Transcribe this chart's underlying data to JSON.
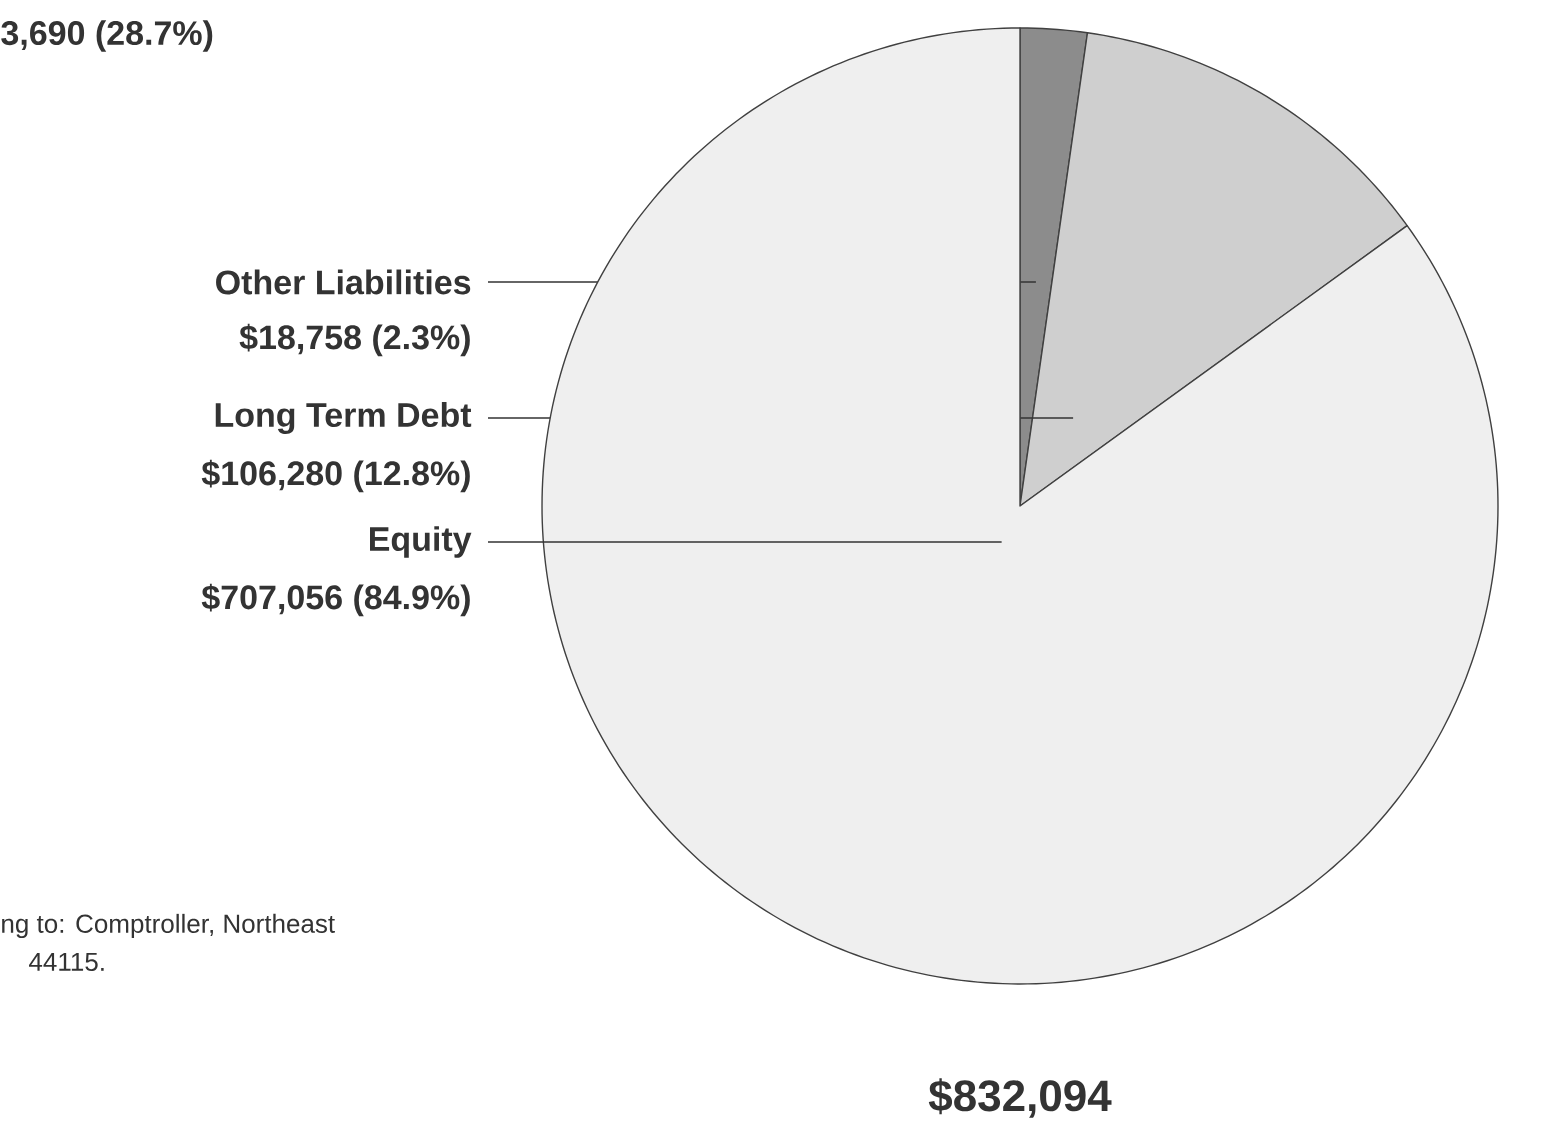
{
  "chart_data": {
    "type": "pie",
    "categories": [
      "Other Liabilities",
      "Long Term Debt",
      "Equity"
    ],
    "values": [
      18758,
      106280,
      707056
    ],
    "colors": [
      "#8c8c8c",
      "#cfcfcf",
      "#efefef"
    ],
    "value_labels": [
      "$18,758 (2.3%)",
      "$106,280 (12.8%)",
      "$707,056 (84.9%)"
    ],
    "annotations": [
      "$832,094",
      "3,690 (28.7%)",
      "ng to: Comptroller, Northeast",
      "44115."
    ]
  }
}
